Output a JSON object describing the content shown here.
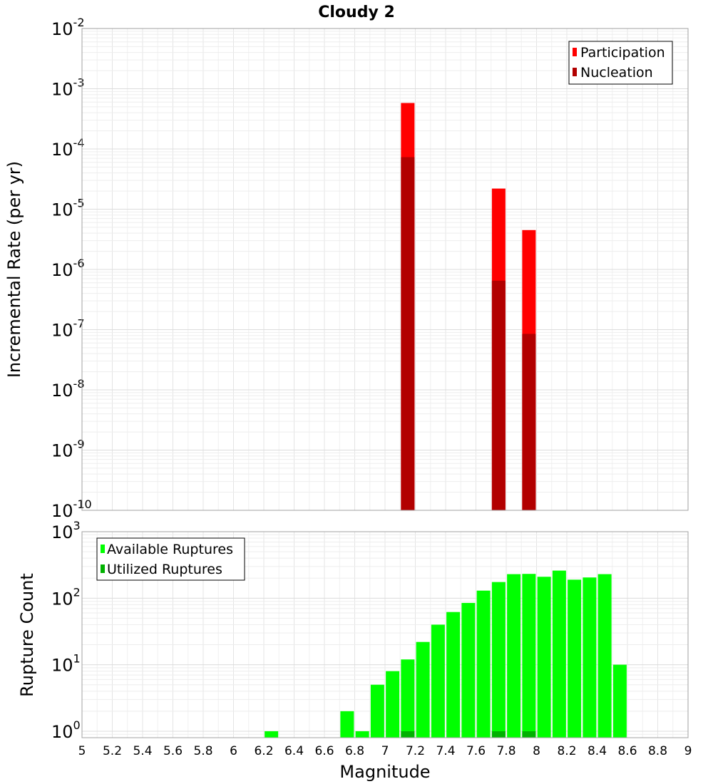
{
  "chart_data": [
    {
      "type": "bar",
      "title": "Cloudy 2",
      "xlabel": "",
      "ylabel": "Incremental Rate (per yr)",
      "yscale": "log",
      "ylim": [
        1e-10,
        0.01
      ],
      "xlim": [
        5,
        9
      ],
      "yticks": [
        {
          "base": "10",
          "exp": "-10"
        },
        {
          "base": "10",
          "exp": "-9"
        },
        {
          "base": "10",
          "exp": "-8"
        },
        {
          "base": "10",
          "exp": "-7"
        },
        {
          "base": "10",
          "exp": "-6"
        },
        {
          "base": "10",
          "exp": "-5"
        },
        {
          "base": "10",
          "exp": "-4"
        },
        {
          "base": "10",
          "exp": "-3"
        },
        {
          "base": "10",
          "exp": "-2"
        }
      ],
      "legend_position": "top-right",
      "grid": true,
      "series": [
        {
          "name": "Participation",
          "color": "#ff0000",
          "x": [
            7.15,
            7.75,
            7.95
          ],
          "values": [
            0.00058,
            2.2e-05,
            4.5e-06
          ]
        },
        {
          "name": "Nucleation",
          "color": "#b20000",
          "x": [
            7.15,
            7.75,
            7.95
          ],
          "values": [
            7.3e-05,
            6.5e-07,
            8.5e-08
          ]
        }
      ]
    },
    {
      "type": "bar",
      "xlabel": "Magnitude",
      "ylabel": "Rupture Count",
      "yscale": "log",
      "ylim": [
        0.8,
        1000
      ],
      "xlim": [
        5,
        9
      ],
      "xticks": [
        "5",
        "5.2",
        "5.4",
        "5.6",
        "5.8",
        "6",
        "6.2",
        "6.4",
        "6.6",
        "6.8",
        "7",
        "7.2",
        "7.4",
        "7.6",
        "7.8",
        "8",
        "8.2",
        "8.4",
        "8.6",
        "8.8",
        "9"
      ],
      "yticks": [
        {
          "base": "10",
          "exp": "0"
        },
        {
          "base": "10",
          "exp": "1"
        },
        {
          "base": "10",
          "exp": "2"
        },
        {
          "base": "10",
          "exp": "3"
        }
      ],
      "legend_position": "top-left",
      "grid": true,
      "series": [
        {
          "name": "Available Ruptures",
          "color": "#00ff00",
          "x": [
            6.25,
            6.75,
            6.85,
            6.95,
            7.05,
            7.15,
            7.25,
            7.35,
            7.45,
            7.55,
            7.65,
            7.75,
            7.85,
            7.95,
            8.05,
            8.15,
            8.25,
            8.35,
            8.45,
            8.55
          ],
          "values": [
            1,
            2,
            1,
            5,
            8,
            12,
            22,
            40,
            62,
            85,
            130,
            175,
            230,
            232,
            210,
            260,
            190,
            205,
            230,
            10
          ]
        },
        {
          "name": "Utilized Ruptures",
          "color": "#00b200",
          "x": [
            7.15,
            7.75,
            7.95
          ],
          "values": [
            1,
            1,
            1
          ]
        }
      ]
    }
  ]
}
